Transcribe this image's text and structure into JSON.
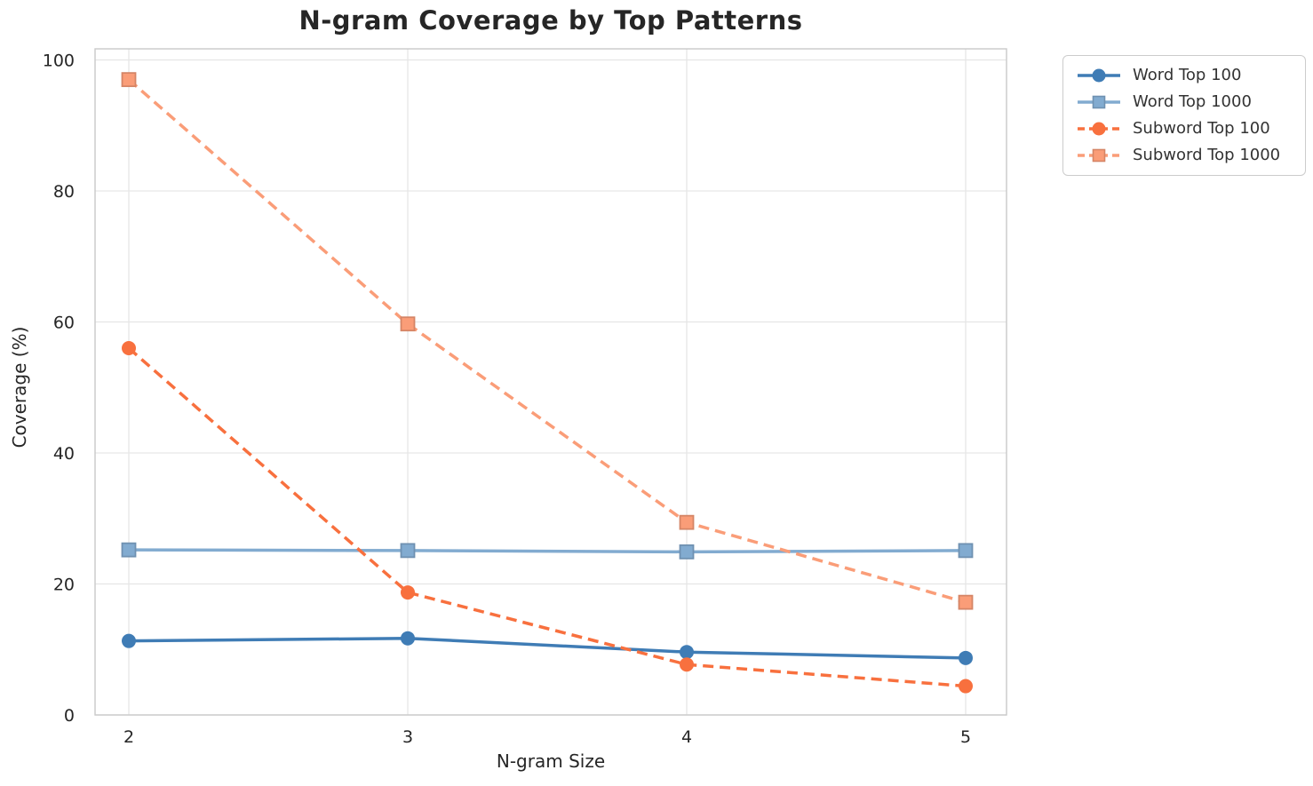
{
  "chart_data": {
    "type": "line",
    "title": "N-gram Coverage by Top Patterns",
    "xlabel": "N-gram Size",
    "ylabel": "Coverage (%)",
    "x": [
      2,
      3,
      4,
      5
    ],
    "xticks": [
      "2",
      "3",
      "4",
      "5"
    ],
    "yticks": [
      "0",
      "20",
      "40",
      "60",
      "80",
      "100"
    ],
    "ylim": [
      0,
      100
    ],
    "grid": true,
    "legend_position": "upper-right-outside",
    "series": [
      {
        "name": "Word Top 100",
        "color": "#3f7cb5",
        "line_style": "solid",
        "marker": "circle",
        "values": [
          11.3,
          11.7,
          9.6,
          8.7
        ]
      },
      {
        "name": "Word Top 1000",
        "color": "#82abd0",
        "line_style": "solid",
        "marker": "square",
        "values": [
          25.2,
          25.1,
          24.9,
          25.1
        ]
      },
      {
        "name": "Subword Top 100",
        "color": "#f8703e",
        "line_style": "dashed",
        "marker": "circle",
        "values": [
          56.0,
          18.7,
          7.7,
          4.4
        ]
      },
      {
        "name": "Subword Top 1000",
        "color": "#fa9d78",
        "line_style": "dashed",
        "marker": "square",
        "values": [
          97.0,
          59.7,
          29.4,
          17.2
        ]
      }
    ]
  }
}
